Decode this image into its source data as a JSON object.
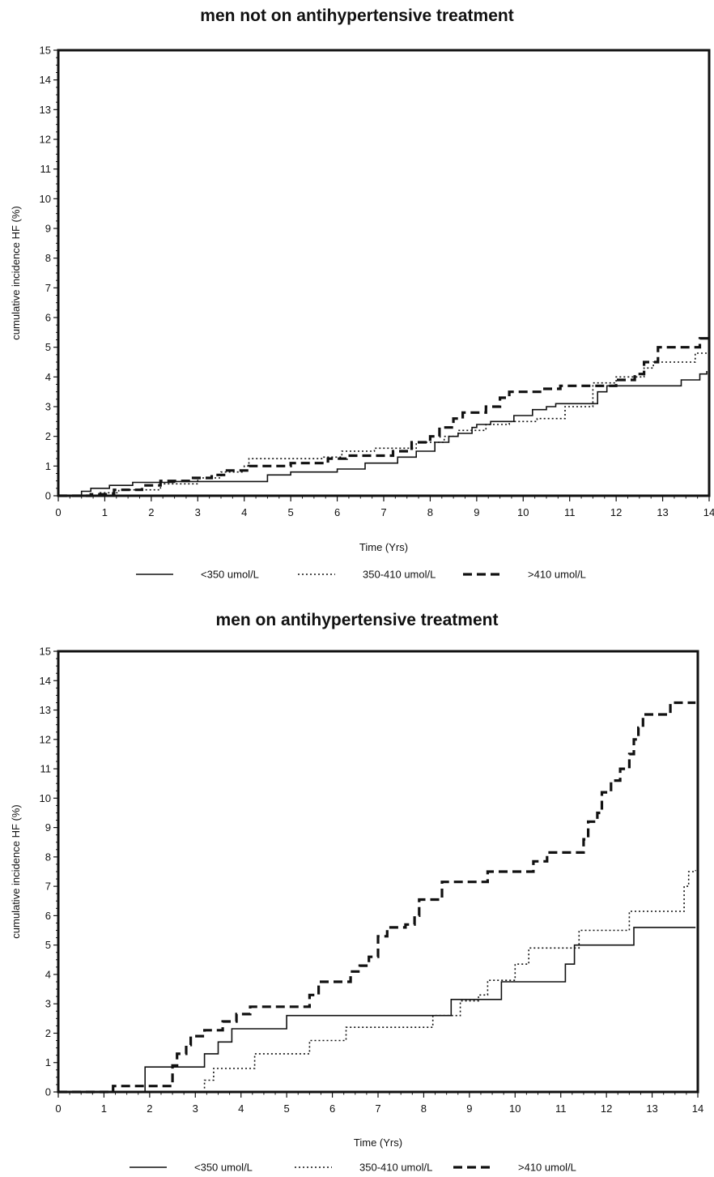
{
  "chart_data": [
    {
      "type": "line",
      "title": "men not on antihypertensive treatment",
      "xlabel": "Time (Yrs)",
      "ylabel": "cumulative incidence HF (%)",
      "xlim": [
        0,
        14
      ],
      "ylim": [
        0,
        15
      ],
      "xticks": [
        "0",
        "1",
        "2",
        "3",
        "4",
        "5",
        "6",
        "7",
        "8",
        "9",
        "10",
        "11",
        "12",
        "13",
        "14"
      ],
      "yticks": [
        "0",
        "1",
        "2",
        "3",
        "4",
        "5",
        "6",
        "7",
        "8",
        "9",
        "10",
        "11",
        "12",
        "13",
        "14",
        "15"
      ],
      "grid": false,
      "legend_position": "bottom",
      "series": [
        {
          "name": "<350 umol/L",
          "style": "solid",
          "color": "#111111",
          "points": [
            [
              0,
              0
            ],
            [
              0.5,
              0.15
            ],
            [
              0.7,
              0.25
            ],
            [
              1.1,
              0.35
            ],
            [
              1.6,
              0.45
            ],
            [
              2.5,
              0.48
            ],
            [
              4.5,
              0.7
            ],
            [
              5.0,
              0.8
            ],
            [
              6.0,
              0.9
            ],
            [
              6.6,
              1.1
            ],
            [
              7.3,
              1.3
            ],
            [
              7.7,
              1.5
            ],
            [
              8.1,
              1.8
            ],
            [
              8.4,
              2.0
            ],
            [
              8.6,
              2.1
            ],
            [
              8.9,
              2.3
            ],
            [
              9.0,
              2.4
            ],
            [
              9.3,
              2.5
            ],
            [
              9.8,
              2.7
            ],
            [
              10.2,
              2.9
            ],
            [
              10.5,
              3.0
            ],
            [
              10.7,
              3.1
            ],
            [
              11.6,
              3.5
            ],
            [
              11.8,
              3.7
            ],
            [
              12.0,
              3.7
            ],
            [
              13.0,
              3.7
            ],
            [
              13.4,
              3.9
            ],
            [
              13.8,
              4.1
            ],
            [
              13.95,
              4.2
            ]
          ]
        },
        {
          "name": "350-410 umol/L",
          "style": "dotted",
          "color": "#111111",
          "points": [
            [
              0,
              0
            ],
            [
              0.9,
              0.1
            ],
            [
              1.3,
              0.2
            ],
            [
              2.2,
              0.4
            ],
            [
              3.0,
              0.6
            ],
            [
              3.5,
              0.8
            ],
            [
              4.0,
              1.0
            ],
            [
              4.1,
              1.25
            ],
            [
              5.0,
              1.25
            ],
            [
              5.7,
              1.3
            ],
            [
              6.1,
              1.5
            ],
            [
              6.8,
              1.6
            ],
            [
              7.7,
              1.8
            ],
            [
              8.3,
              2.0
            ],
            [
              8.6,
              2.2
            ],
            [
              9.0,
              2.2
            ],
            [
              9.2,
              2.4
            ],
            [
              9.7,
              2.5
            ],
            [
              10.3,
              2.6
            ],
            [
              10.9,
              3.0
            ],
            [
              11.5,
              3.8
            ],
            [
              12.0,
              4.0
            ],
            [
              12.6,
              4.3
            ],
            [
              12.8,
              4.5
            ],
            [
              13.5,
              4.5
            ],
            [
              13.7,
              4.8
            ],
            [
              13.95,
              4.8
            ]
          ]
        },
        {
          "name": ">410 umol/L",
          "style": "dashed",
          "color": "#111111",
          "points": [
            [
              0,
              0
            ],
            [
              0.7,
              0.05
            ],
            [
              1.2,
              0.2
            ],
            [
              1.8,
              0.35
            ],
            [
              2.2,
              0.5
            ],
            [
              2.9,
              0.6
            ],
            [
              3.3,
              0.7
            ],
            [
              3.6,
              0.85
            ],
            [
              4.1,
              1.0
            ],
            [
              5.0,
              1.1
            ],
            [
              5.8,
              1.25
            ],
            [
              6.2,
              1.35
            ],
            [
              7.2,
              1.5
            ],
            [
              7.6,
              1.8
            ],
            [
              8.0,
              2.0
            ],
            [
              8.2,
              2.3
            ],
            [
              8.5,
              2.6
            ],
            [
              8.7,
              2.8
            ],
            [
              9.2,
              3.0
            ],
            [
              9.5,
              3.3
            ],
            [
              9.7,
              3.5
            ],
            [
              10.4,
              3.6
            ],
            [
              10.8,
              3.7
            ],
            [
              11.6,
              3.7
            ],
            [
              12.0,
              3.9
            ],
            [
              12.4,
              4.1
            ],
            [
              12.6,
              4.5
            ],
            [
              12.9,
              5.0
            ],
            [
              13.6,
              5.0
            ],
            [
              13.8,
              5.3
            ],
            [
              13.95,
              5.5
            ]
          ]
        }
      ]
    },
    {
      "type": "line",
      "title": "men on antihypertensive treatment",
      "xlabel": "Time (Yrs)",
      "ylabel": "cumulative incidence HF (%)",
      "xlim": [
        0,
        14
      ],
      "ylim": [
        0,
        15
      ],
      "xticks": [
        "0",
        "1",
        "2",
        "3",
        "4",
        "5",
        "6",
        "7",
        "8",
        "9",
        "10",
        "11",
        "12",
        "13",
        "14"
      ],
      "yticks": [
        "0",
        "1",
        "2",
        "3",
        "4",
        "5",
        "6",
        "7",
        "8",
        "9",
        "10",
        "11",
        "12",
        "13",
        "14",
        "15"
      ],
      "grid": false,
      "legend_position": "bottom",
      "series": [
        {
          "name": "<350 umol/L",
          "style": "solid",
          "color": "#111111",
          "points": [
            [
              0,
              0
            ],
            [
              1.9,
              0.0
            ],
            [
              1.9,
              0.85
            ],
            [
              3.1,
              0.85
            ],
            [
              3.2,
              1.3
            ],
            [
              3.5,
              1.7
            ],
            [
              3.8,
              2.15
            ],
            [
              5.0,
              2.15
            ],
            [
              5.0,
              2.6
            ],
            [
              8.6,
              2.6
            ],
            [
              8.6,
              3.15
            ],
            [
              9.7,
              3.15
            ],
            [
              9.7,
              3.75
            ],
            [
              11.1,
              3.75
            ],
            [
              11.1,
              4.35
            ],
            [
              11.3,
              4.35
            ],
            [
              11.3,
              5.0
            ],
            [
              12.6,
              5.0
            ],
            [
              12.6,
              5.6
            ],
            [
              13.95,
              5.6
            ]
          ]
        },
        {
          "name": "350-410 umol/L",
          "style": "dotted",
          "color": "#111111",
          "points": [
            [
              0,
              0
            ],
            [
              3.1,
              0.0
            ],
            [
              3.2,
              0.4
            ],
            [
              3.4,
              0.8
            ],
            [
              4.2,
              0.8
            ],
            [
              4.3,
              1.3
            ],
            [
              5.4,
              1.3
            ],
            [
              5.5,
              1.75
            ],
            [
              6.2,
              1.75
            ],
            [
              6.3,
              2.2
            ],
            [
              8.1,
              2.2
            ],
            [
              8.2,
              2.6
            ],
            [
              8.6,
              2.6
            ],
            [
              8.8,
              3.1
            ],
            [
              9.2,
              3.3
            ],
            [
              9.4,
              3.8
            ],
            [
              9.9,
              3.8
            ],
            [
              10.0,
              4.35
            ],
            [
              10.3,
              4.9
            ],
            [
              11.2,
              4.9
            ],
            [
              11.4,
              5.5
            ],
            [
              12.4,
              5.5
            ],
            [
              12.5,
              6.15
            ],
            [
              13.6,
              6.15
            ],
            [
              13.7,
              7.0
            ],
            [
              13.8,
              7.5
            ],
            [
              13.95,
              7.55
            ]
          ]
        },
        {
          "name": ">410 umol/L",
          "style": "dashed",
          "color": "#111111",
          "points": [
            [
              0,
              0
            ],
            [
              1.2,
              0.0
            ],
            [
              1.2,
              0.2
            ],
            [
              2.4,
              0.2
            ],
            [
              2.5,
              0.9
            ],
            [
              2.6,
              1.3
            ],
            [
              2.8,
              1.6
            ],
            [
              2.9,
              1.9
            ],
            [
              3.2,
              2.1
            ],
            [
              3.6,
              2.4
            ],
            [
              3.9,
              2.65
            ],
            [
              4.2,
              2.9
            ],
            [
              5.4,
              2.9
            ],
            [
              5.5,
              3.3
            ],
            [
              5.7,
              3.75
            ],
            [
              6.2,
              3.75
            ],
            [
              6.4,
              4.1
            ],
            [
              6.6,
              4.3
            ],
            [
              6.8,
              4.6
            ],
            [
              7.0,
              5.3
            ],
            [
              7.2,
              5.6
            ],
            [
              7.6,
              5.7
            ],
            [
              7.8,
              6.0
            ],
            [
              7.9,
              6.55
            ],
            [
              8.3,
              6.55
            ],
            [
              8.4,
              7.15
            ],
            [
              9.2,
              7.15
            ],
            [
              9.4,
              7.5
            ],
            [
              10.1,
              7.5
            ],
            [
              10.4,
              7.85
            ],
            [
              10.7,
              8.15
            ],
            [
              11.3,
              8.15
            ],
            [
              11.5,
              8.6
            ],
            [
              11.6,
              9.2
            ],
            [
              11.8,
              9.5
            ],
            [
              11.9,
              10.2
            ],
            [
              12.1,
              10.6
            ],
            [
              12.3,
              11.0
            ],
            [
              12.5,
              11.5
            ],
            [
              12.6,
              12.0
            ],
            [
              12.7,
              12.4
            ],
            [
              12.8,
              12.85
            ],
            [
              13.3,
              12.85
            ],
            [
              13.4,
              13.25
            ],
            [
              13.95,
              13.25
            ]
          ]
        }
      ]
    }
  ]
}
